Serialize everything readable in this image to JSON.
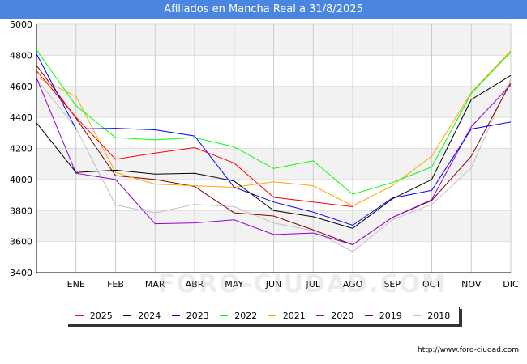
{
  "header": {
    "title": "Afiliados en Mancha Real a 31/8/2025"
  },
  "footer": {
    "url": "http://www.foro-ciudad.com"
  },
  "watermark": "FORO-CIUDAD.COM",
  "chart_data": {
    "type": "line",
    "title": "Afiliados en Mancha Real a 31/8/2025",
    "xlabel": "",
    "ylabel": "",
    "categories": [
      "",
      "ENE",
      "FEB",
      "MAR",
      "ABR",
      "MAY",
      "JUN",
      "JUL",
      "AGO",
      "SEP",
      "OCT",
      "NOV",
      "DIC"
    ],
    "ylim": [
      3400,
      5000
    ],
    "yticks": [
      3400,
      3600,
      3800,
      4000,
      4200,
      4400,
      4600,
      4800,
      5000
    ],
    "legend_position": "bottom",
    "series": [
      {
        "name": "2025",
        "color": "#ff0000",
        "values": [
          4700,
          4400,
          4130,
          4170,
          4205,
          4105,
          3885,
          3855,
          3825,
          null,
          null,
          null,
          null
        ]
      },
      {
        "name": "2024",
        "color": "#000000",
        "values": [
          4365,
          4045,
          4060,
          4035,
          4040,
          3990,
          3800,
          3760,
          3685,
          3875,
          4000,
          4515,
          4670
        ]
      },
      {
        "name": "2023",
        "color": "#0000ff",
        "values": [
          4810,
          4325,
          4330,
          4320,
          4280,
          3950,
          3855,
          3790,
          3705,
          3880,
          3930,
          4325,
          4370
        ]
      },
      {
        "name": "2022",
        "color": "#00ff00",
        "values": [
          4835,
          4475,
          4270,
          4255,
          4270,
          4210,
          4070,
          4120,
          3905,
          3980,
          4080,
          4555,
          4820
        ]
      },
      {
        "name": "2021",
        "color": "#ffa500",
        "values": [
          4660,
          4535,
          4045,
          3970,
          3960,
          3950,
          3985,
          3960,
          3830,
          3960,
          4150,
          4560,
          4830
        ]
      },
      {
        "name": "2020",
        "color": "#9400d3",
        "values": [
          4655,
          4040,
          4000,
          3715,
          3720,
          3740,
          3645,
          3655,
          3580,
          3755,
          3870,
          4340,
          4610
        ]
      },
      {
        "name": "2019",
        "color": "#8b0000",
        "values": [
          4735,
          4395,
          4025,
          4000,
          3955,
          3785,
          3765,
          3675,
          3580,
          3755,
          3865,
          4150,
          4625
        ]
      },
      {
        "name": "2018",
        "color": "#c0c0c0",
        "values": [
          4650,
          4330,
          3835,
          3785,
          3840,
          3825,
          3720,
          3670,
          3535,
          3740,
          3840,
          4075,
          4650
        ]
      }
    ]
  }
}
